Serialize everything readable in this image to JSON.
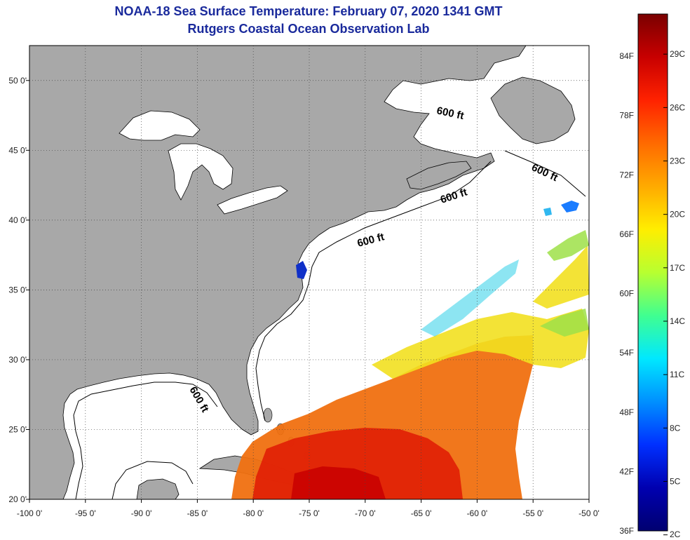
{
  "title": "NOAA-18 Sea Surface Temperature:  February 07, 2020 1341 GMT",
  "subtitle": "Rutgers Coastal Ocean Observation Lab",
  "map": {
    "lon_range": [
      -100,
      -50
    ],
    "lat_range": [
      20,
      52.5
    ],
    "lon_ticks": [
      "-100 0'",
      "-95 0'",
      "-90 0'",
      "-85 0'",
      "-80 0'",
      "-75 0'",
      "-70 0'",
      "-65 0'",
      "-60 0'",
      "-55 0'",
      "-50 0'"
    ],
    "lat_ticks": [
      "50 0'",
      "45 0'",
      "40 0'",
      "35 0'",
      "30 0'",
      "25 0'",
      "20 0'"
    ],
    "land_color": "#a8a8a8",
    "ocean_color": "#ffffff",
    "isobath_labels": [
      "600 ft",
      "600 ft",
      "600 ft",
      "600 ft",
      "600 ft"
    ]
  },
  "colorbar": {
    "fahrenheit_labels": [
      "84F",
      "78F",
      "72F",
      "66F",
      "60F",
      "54F",
      "48F",
      "42F",
      "36F"
    ],
    "celsius_labels": [
      "29C",
      "26C",
      "23C",
      "20C",
      "17C",
      "14C",
      "11C",
      "8C",
      "5C",
      "2C"
    ],
    "gradient": [
      "#7a0000",
      "#c80000",
      "#ff2200",
      "#ff6a00",
      "#ffaa00",
      "#ffee00",
      "#b8ff30",
      "#40ff90",
      "#00e8ff",
      "#0090ff",
      "#0030ff",
      "#0000b0",
      "#000070"
    ]
  }
}
